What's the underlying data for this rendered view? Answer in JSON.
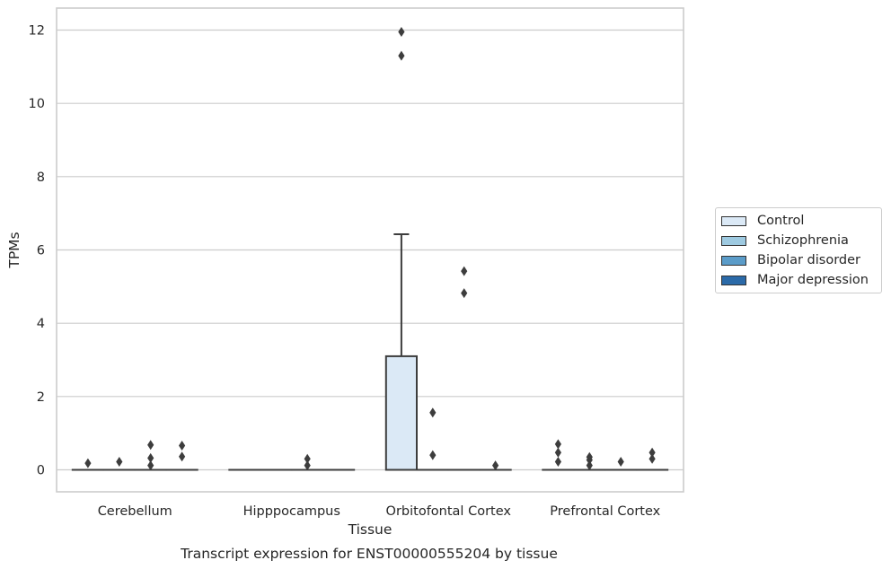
{
  "chart_data": {
    "type": "box",
    "title": "Transcript expression for ENST00000555204 by tissue",
    "xlabel": "Tissue",
    "ylabel": "TPMs",
    "ylim": [
      -0.6,
      12.6
    ],
    "yticks": [
      0,
      2,
      4,
      6,
      8,
      10,
      12
    ],
    "grid": true,
    "legend_position": "right",
    "categories": [
      "Cerebellum",
      "Hipppocampus",
      "Orbitofontal Cortex",
      "Prefrontal Cortex"
    ],
    "series": [
      {
        "name": "Control",
        "color": "#dbe9f6",
        "boxes": [
          {
            "q1": 0,
            "median": 0,
            "q3": 0,
            "whisker_low": 0,
            "whisker_high": 0,
            "outliers": [
              0.18
            ]
          },
          {
            "q1": 0,
            "median": 0,
            "q3": 0,
            "whisker_low": 0,
            "whisker_high": 0,
            "outliers": []
          },
          {
            "q1": 0,
            "median": 0,
            "q3": 3.1,
            "whisker_low": 0,
            "whisker_high": 6.43,
            "outliers": [
              11.3,
              11.95
            ]
          },
          {
            "q1": 0,
            "median": 0,
            "q3": 0,
            "whisker_low": 0,
            "whisker_high": 0,
            "outliers": [
              0.22,
              0.47,
              0.7
            ]
          }
        ]
      },
      {
        "name": "Schizophrenia",
        "color": "#9ecae1",
        "boxes": [
          {
            "q1": 0,
            "median": 0,
            "q3": 0,
            "whisker_low": 0,
            "whisker_high": 0,
            "outliers": [
              0.22
            ]
          },
          {
            "q1": 0,
            "median": 0,
            "q3": 0,
            "whisker_low": 0,
            "whisker_high": 0,
            "outliers": []
          },
          {
            "q1": 0,
            "median": 0,
            "q3": 0,
            "whisker_low": 0,
            "whisker_high": 0,
            "outliers": [
              0.4,
              1.56
            ]
          },
          {
            "q1": 0,
            "median": 0,
            "q3": 0,
            "whisker_low": 0,
            "whisker_high": 0,
            "outliers": [
              0.12,
              0.27,
              0.35
            ]
          }
        ]
      },
      {
        "name": "Bipolar disorder",
        "color": "#5b9cc9",
        "boxes": [
          {
            "q1": 0,
            "median": 0,
            "q3": 0,
            "whisker_low": 0,
            "whisker_high": 0,
            "outliers": [
              0.12,
              0.32,
              0.68
            ]
          },
          {
            "q1": 0,
            "median": 0,
            "q3": 0,
            "whisker_low": 0,
            "whisker_high": 0,
            "outliers": [
              0.12,
              0.3
            ]
          },
          {
            "q1": 0,
            "median": 0,
            "q3": 0,
            "whisker_low": 0,
            "whisker_high": 0,
            "outliers": [
              4.82,
              5.42
            ]
          },
          {
            "q1": 0,
            "median": 0,
            "q3": 0,
            "whisker_low": 0,
            "whisker_high": 0,
            "outliers": [
              0.22
            ]
          }
        ]
      },
      {
        "name": "Major depression",
        "color": "#2b6aa8",
        "boxes": [
          {
            "q1": 0,
            "median": 0,
            "q3": 0,
            "whisker_low": 0,
            "whisker_high": 0,
            "outliers": [
              0.36,
              0.66
            ]
          },
          {
            "q1": 0,
            "median": 0,
            "q3": 0,
            "whisker_low": 0,
            "whisker_high": 0,
            "outliers": []
          },
          {
            "q1": 0,
            "median": 0,
            "q3": 0,
            "whisker_low": 0,
            "whisker_high": 0,
            "outliers": [
              0.12
            ]
          },
          {
            "q1": 0,
            "median": 0,
            "q3": 0,
            "whisker_low": 0,
            "whisker_high": 0,
            "outliers": [
              0.3,
              0.47
            ]
          }
        ]
      }
    ]
  },
  "colors": {
    "grid": "#cccccc",
    "frame": "#cccccc",
    "box_edge": "#3d3d3d",
    "outlier": "#3d3d3d",
    "text": "#262626"
  }
}
